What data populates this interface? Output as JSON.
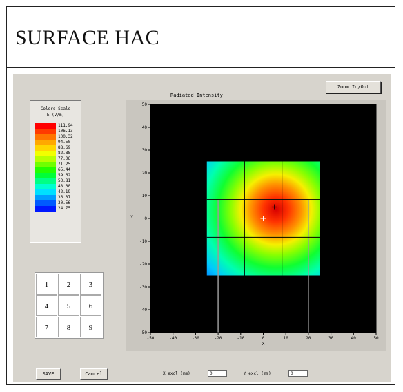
{
  "window": {
    "title": "SURFACE HAC"
  },
  "toolbar": {
    "zoom_label": "Zoom In/Out"
  },
  "plot": {
    "title": "Radiated Intensity",
    "xlabel": "X",
    "ylabel": "Y",
    "background": "#000000"
  },
  "color_scale": {
    "title": "Colors Scale",
    "unit": "E (V/m)",
    "entries": [
      {
        "label": "111.94",
        "color": "#ff0000"
      },
      {
        "label": "106.13",
        "color": "#ff3a00"
      },
      {
        "label": "100.32",
        "color": "#ff7500"
      },
      {
        "label": "94.50",
        "color": "#ffa800"
      },
      {
        "label": "88.69",
        "color": "#ffd600"
      },
      {
        "label": "82.88",
        "color": "#f2ff00"
      },
      {
        "label": "77.06",
        "color": "#b8ff00"
      },
      {
        "label": "71.25",
        "color": "#6fff00"
      },
      {
        "label": "65.44",
        "color": "#22ff00"
      },
      {
        "label": "59.62",
        "color": "#00ff37"
      },
      {
        "label": "53.81",
        "color": "#00ff85"
      },
      {
        "label": "48.00",
        "color": "#00ffd0"
      },
      {
        "label": "42.19",
        "color": "#00e0ff"
      },
      {
        "label": "36.37",
        "color": "#009eff"
      },
      {
        "label": "30.56",
        "color": "#005aff"
      },
      {
        "label": "24.75",
        "color": "#0018ff"
      }
    ]
  },
  "numpad": {
    "keys": [
      "1",
      "2",
      "3",
      "4",
      "5",
      "6",
      "7",
      "8",
      "9"
    ]
  },
  "buttons": {
    "save": "SAVE",
    "cancel": "Cancel"
  },
  "fields": {
    "x_excl_label": "X excl (mm)",
    "x_excl_value": "0",
    "y_excl_label": "Y excl (mm)",
    "y_excl_value": "0"
  },
  "chart_data": {
    "type": "heatmap",
    "title": "Radiated Intensity",
    "xlabel": "X",
    "ylabel": "Y",
    "xlim": [
      -50,
      50
    ],
    "ylim": [
      -50,
      50
    ],
    "x_ticks": [
      "-50",
      "-40",
      "-30",
      "-20",
      "-10",
      "0",
      "10",
      "20",
      "30",
      "40",
      "50"
    ],
    "y_ticks": [
      "50",
      "40",
      "30",
      "20",
      "10",
      "0",
      "-10",
      "-20",
      "-30",
      "-40",
      "-50"
    ],
    "scan_area": {
      "x": [
        -25,
        25
      ],
      "y": [
        -25,
        25
      ]
    },
    "grid_lines_x": [
      -8.3,
      8.3
    ],
    "grid_lines_y": [
      8.3,
      -8.3
    ],
    "max_point": {
      "x": 5,
      "y": 5,
      "value": 111.94
    },
    "min_value": 24.75,
    "center_marker": {
      "x": 0,
      "y": 0
    },
    "guide_lines_x": [
      -20,
      20
    ],
    "guide_lines_y_range": [
      -50,
      8.3
    ]
  }
}
